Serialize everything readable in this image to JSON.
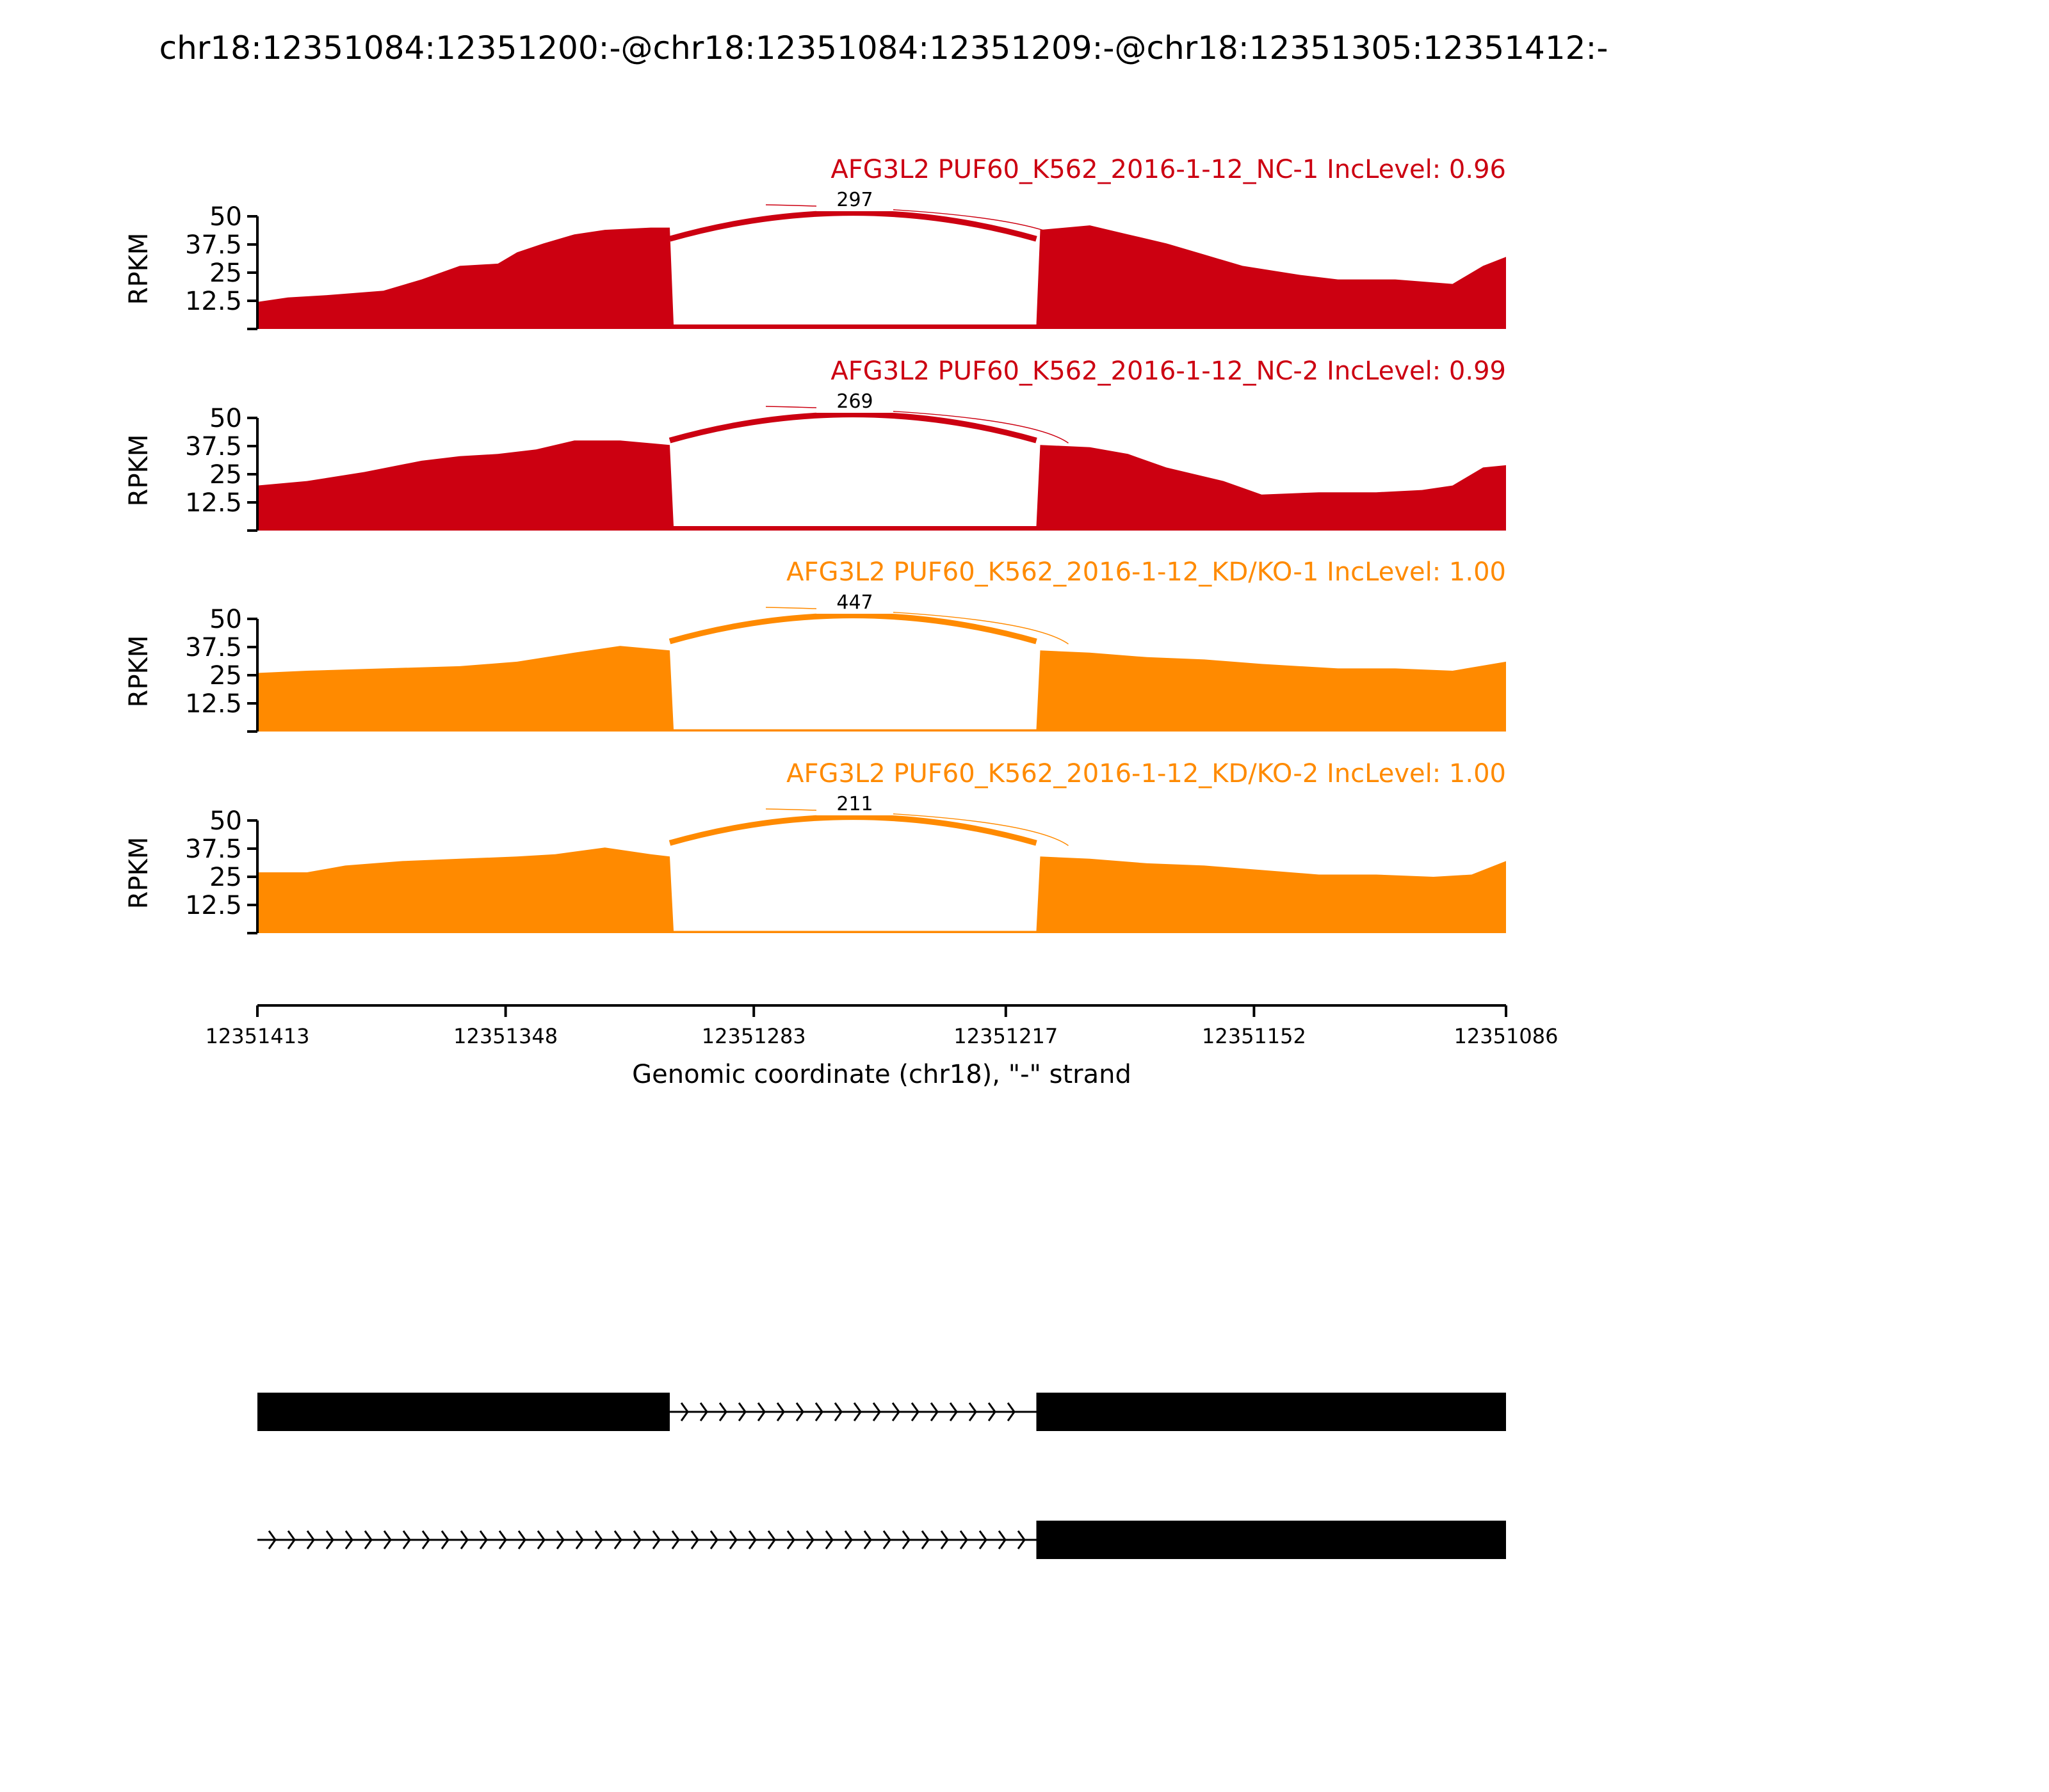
{
  "title": "chr18:12351084:12351200:-@chr18:12351084:12351209:-@chr18:12351305:12351412:-",
  "colors": {
    "nc": "#cc0011",
    "kd": "#ff8a00",
    "axis": "#000000",
    "structure": "#000000"
  },
  "chart_data": {
    "type": "area",
    "title": "chr18:12351084:12351200:-@chr18:12351084:12351209:-@chr18:12351305:12351412:-",
    "xlabel": "Genomic coordinate (chr18), \"-\" strand",
    "ylabel": "RPKM",
    "ylim": [
      0,
      50
    ],
    "yticks": [
      "12.5",
      "25",
      "37.5",
      "50"
    ],
    "x_range": [
      12351413,
      12351086
    ],
    "xticks": [
      "12351413",
      "12351348",
      "12351283",
      "12351217",
      "12351152",
      "12351086"
    ],
    "tracks": [
      {
        "label": "AFG3L2 PUF60_K562_2016-1-12_NC-1 IncLevel: 0.96",
        "group": "nc",
        "junction_count": "297",
        "junction_from": 12351305,
        "junction_to": 12351209,
        "coverage": [
          [
            12351413,
            12
          ],
          [
            12351405,
            14
          ],
          [
            12351395,
            15
          ],
          [
            12351380,
            17
          ],
          [
            12351370,
            22
          ],
          [
            12351360,
            28
          ],
          [
            12351350,
            29
          ],
          [
            12351345,
            34
          ],
          [
            12351338,
            38
          ],
          [
            12351330,
            42
          ],
          [
            12351322,
            44
          ],
          [
            12351310,
            45
          ],
          [
            12351305,
            45
          ],
          [
            12351304,
            2
          ],
          [
            12351209,
            2
          ],
          [
            12351208,
            44
          ],
          [
            12351195,
            46
          ],
          [
            12351185,
            42
          ],
          [
            12351175,
            38
          ],
          [
            12351165,
            33
          ],
          [
            12351155,
            28
          ],
          [
            12351140,
            24
          ],
          [
            12351130,
            22
          ],
          [
            12351115,
            22
          ],
          [
            12351100,
            20
          ],
          [
            12351092,
            28
          ],
          [
            12351086,
            32
          ]
        ]
      },
      {
        "label": "AFG3L2 PUF60_K562_2016-1-12_NC-2 IncLevel: 0.99",
        "group": "nc",
        "junction_count": "269",
        "junction_from": 12351305,
        "junction_to": 12351209,
        "coverage": [
          [
            12351413,
            20
          ],
          [
            12351400,
            22
          ],
          [
            12351385,
            26
          ],
          [
            12351370,
            31
          ],
          [
            12351360,
            33
          ],
          [
            12351350,
            34
          ],
          [
            12351340,
            36
          ],
          [
            12351330,
            40
          ],
          [
            12351318,
            40
          ],
          [
            12351305,
            38
          ],
          [
            12351304,
            2
          ],
          [
            12351209,
            2
          ],
          [
            12351208,
            38
          ],
          [
            12351195,
            37
          ],
          [
            12351185,
            34
          ],
          [
            12351175,
            28
          ],
          [
            12351160,
            22
          ],
          [
            12351150,
            16
          ],
          [
            12351135,
            17
          ],
          [
            12351120,
            17
          ],
          [
            12351108,
            18
          ],
          [
            12351100,
            20
          ],
          [
            12351092,
            28
          ],
          [
            12351086,
            29
          ]
        ]
      },
      {
        "label": "AFG3L2 PUF60_K562_2016-1-12_KD/KO-1 IncLevel: 1.00",
        "group": "kd",
        "junction_count": "447",
        "junction_from": 12351305,
        "junction_to": 12351209,
        "coverage": [
          [
            12351413,
            26
          ],
          [
            12351400,
            27
          ],
          [
            12351380,
            28
          ],
          [
            12351360,
            29
          ],
          [
            12351345,
            31
          ],
          [
            12351330,
            35
          ],
          [
            12351318,
            38
          ],
          [
            12351305,
            36
          ],
          [
            12351304,
            1
          ],
          [
            12351209,
            1
          ],
          [
            12351208,
            36
          ],
          [
            12351195,
            35
          ],
          [
            12351180,
            33
          ],
          [
            12351165,
            32
          ],
          [
            12351150,
            30
          ],
          [
            12351130,
            28
          ],
          [
            12351115,
            28
          ],
          [
            12351100,
            27
          ],
          [
            12351086,
            31
          ]
        ]
      },
      {
        "label": "AFG3L2 PUF60_K562_2016-1-12_KD/KO-2 IncLevel: 1.00",
        "group": "kd",
        "junction_count": "211",
        "junction_from": 12351305,
        "junction_to": 12351209,
        "coverage": [
          [
            12351413,
            27
          ],
          [
            12351400,
            27
          ],
          [
            12351390,
            30
          ],
          [
            12351375,
            32
          ],
          [
            12351360,
            33
          ],
          [
            12351345,
            34
          ],
          [
            12351335,
            35
          ],
          [
            12351322,
            38
          ],
          [
            12351310,
            35
          ],
          [
            12351305,
            34
          ],
          [
            12351304,
            1
          ],
          [
            12351209,
            1
          ],
          [
            12351208,
            34
          ],
          [
            12351195,
            33
          ],
          [
            12351180,
            31
          ],
          [
            12351165,
            30
          ],
          [
            12351150,
            28
          ],
          [
            12351135,
            26
          ],
          [
            12351120,
            26
          ],
          [
            12351105,
            25
          ],
          [
            12351095,
            26
          ],
          [
            12351086,
            32
          ]
        ]
      }
    ],
    "isoforms": [
      {
        "exons": [
          [
            12351413,
            12351305
          ],
          [
            12351209,
            12351086
          ]
        ]
      },
      {
        "exons": [
          [
            12351209,
            12351086
          ]
        ]
      }
    ]
  }
}
